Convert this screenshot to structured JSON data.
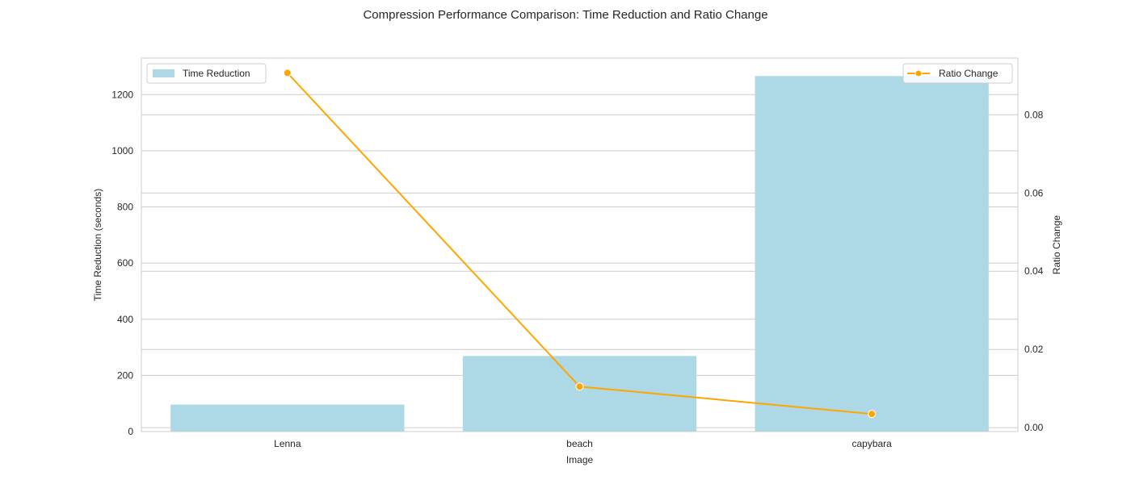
{
  "chart_data": {
    "type": "bar",
    "title": "Compression Performance Comparison: Time Reduction and Ratio Change",
    "xlabel": "Image",
    "categories": [
      "Lenna",
      "beach",
      "capybara"
    ],
    "left_axis": {
      "label": "Time Reduction (seconds)",
      "ylim": [
        0,
        1330
      ],
      "ticks": [
        0,
        200,
        400,
        600,
        800,
        1000,
        1200
      ]
    },
    "right_axis": {
      "label": "Ratio Change",
      "ylim": [
        -0.001,
        0.0945
      ],
      "ticks": [
        0.0,
        0.02,
        0.04,
        0.06,
        0.08
      ],
      "tick_labels": [
        "0.00",
        "0.02",
        "0.04",
        "0.06",
        "0.08"
      ]
    },
    "series": [
      {
        "name": "Time Reduction",
        "type": "bar",
        "axis": "left",
        "color": "#add8e6",
        "values": [
          96,
          269,
          1266
        ]
      },
      {
        "name": "Ratio Change",
        "type": "line",
        "axis": "right",
        "color": "#ffa500",
        "marker": "circle",
        "values": [
          0.0907,
          0.0105,
          0.0035
        ]
      }
    ],
    "grid": true,
    "legends": {
      "bars": "top-left",
      "line": "top-right"
    }
  }
}
